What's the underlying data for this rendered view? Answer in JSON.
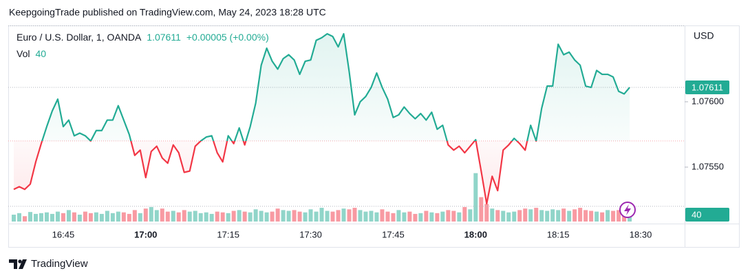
{
  "chart_data": {
    "type": "line",
    "published": "KeepgoingTrade published on TradingView.com, May 24, 2023 18:28 UTC",
    "title": "Euro / U.S. Dollar, 1, OANDA",
    "change": "+0.00005 (+0.00%)",
    "currency": "USD",
    "brand": "TradingView",
    "up_color": "#22ab94",
    "down_color": "#f23645",
    "baseline": 1.0757,
    "ylim": [
      1.075068,
      1.076584
    ],
    "yticks": [
      {
        "value": 1.076,
        "label": "1.07600"
      },
      {
        "value": 1.0755,
        "label": "1.07550"
      }
    ],
    "xlim": [
      "16:35",
      "18:38"
    ],
    "xticks": [
      "16:45",
      "17:00",
      "17:15",
      "17:30",
      "17:45",
      "18:00",
      "18:15",
      "18:30"
    ],
    "x": [
      "16:36",
      "16:37",
      "16:38",
      "16:39",
      "16:40",
      "16:41",
      "16:42",
      "16:43",
      "16:44",
      "16:45",
      "16:46",
      "16:47",
      "16:48",
      "16:49",
      "16:50",
      "16:51",
      "16:52",
      "16:53",
      "16:54",
      "16:55",
      "16:56",
      "16:57",
      "16:58",
      "16:59",
      "17:00",
      "17:01",
      "17:02",
      "17:03",
      "17:04",
      "17:05",
      "17:06",
      "17:07",
      "17:08",
      "17:09",
      "17:10",
      "17:11",
      "17:12",
      "17:13",
      "17:14",
      "17:15",
      "17:16",
      "17:17",
      "17:18",
      "17:19",
      "17:20",
      "17:21",
      "17:22",
      "17:23",
      "17:24",
      "17:25",
      "17:26",
      "17:27",
      "17:28",
      "17:29",
      "17:30",
      "17:31",
      "17:32",
      "17:33",
      "17:34",
      "17:35",
      "17:36",
      "17:37",
      "17:38",
      "17:39",
      "17:40",
      "17:41",
      "17:42",
      "17:43",
      "17:44",
      "17:45",
      "17:46",
      "17:47",
      "17:48",
      "17:49",
      "17:50",
      "17:51",
      "17:52",
      "17:53",
      "17:54",
      "17:55",
      "17:56",
      "17:57",
      "17:58",
      "17:59",
      "18:00",
      "18:01",
      "18:02",
      "18:03",
      "18:04",
      "18:05",
      "18:06",
      "18:07",
      "18:08",
      "18:09",
      "18:10",
      "18:11",
      "18:12",
      "18:13",
      "18:14",
      "18:15",
      "18:16",
      "18:17",
      "18:18",
      "18:19",
      "18:20",
      "18:21",
      "18:22",
      "18:23",
      "18:24",
      "18:25",
      "18:26",
      "18:27",
      "18:28"
    ],
    "series": [
      {
        "name": "EURUSD",
        "values": [
          1.07533,
          1.07535,
          1.07533,
          1.07537,
          1.07554,
          1.07568,
          1.07581,
          1.07593,
          1.07602,
          1.07581,
          1.07586,
          1.07574,
          1.07576,
          1.07574,
          1.0757,
          1.07578,
          1.07578,
          1.07586,
          1.07586,
          1.07597,
          1.07586,
          1.07575,
          1.07559,
          1.07563,
          1.07542,
          1.07562,
          1.07566,
          1.07557,
          1.07553,
          1.07567,
          1.07561,
          1.07546,
          1.07547,
          1.07566,
          1.0757,
          1.07573,
          1.07574,
          1.07561,
          1.07554,
          1.07574,
          1.07568,
          1.0758,
          1.07567,
          1.07581,
          1.07599,
          1.07628,
          1.07641,
          1.07631,
          1.07625,
          1.07633,
          1.07636,
          1.07632,
          1.07621,
          1.07631,
          1.07632,
          1.07647,
          1.07649,
          1.07652,
          1.0765,
          1.07642,
          1.07652,
          1.07623,
          1.0759,
          1.076,
          1.07604,
          1.07611,
          1.07622,
          1.07611,
          1.07602,
          1.07588,
          1.0759,
          1.07596,
          1.07591,
          1.07587,
          1.07591,
          1.07586,
          1.07592,
          1.07579,
          1.07582,
          1.07567,
          1.07563,
          1.07566,
          1.07561,
          1.07566,
          1.07571,
          1.07547,
          1.07522,
          1.07543,
          1.07532,
          1.07563,
          1.07567,
          1.07572,
          1.07568,
          1.07563,
          1.07582,
          1.0757,
          1.07595,
          1.07612,
          1.07612,
          1.07644,
          1.07636,
          1.07638,
          1.07632,
          1.07628,
          1.07612,
          1.07611,
          1.07624,
          1.07621,
          1.07621,
          1.07619,
          1.07608,
          1.07606,
          1.07611
        ]
      }
    ],
    "volume": {
      "name": "Vol",
      "ylim": [
        0,
        130
      ],
      "values": [
        18,
        22,
        14,
        25,
        20,
        22,
        24,
        20,
        26,
        22,
        30,
        24,
        18,
        26,
        22,
        24,
        20,
        28,
        22,
        26,
        24,
        20,
        30,
        22,
        34,
        38,
        30,
        34,
        26,
        28,
        24,
        30,
        26,
        28,
        22,
        24,
        20,
        26,
        24,
        22,
        28,
        30,
        26,
        24,
        32,
        28,
        24,
        26,
        34,
        30,
        28,
        30,
        26,
        24,
        32,
        26,
        36,
        28,
        26,
        30,
        34,
        32,
        36,
        30,
        26,
        28,
        24,
        32,
        26,
        22,
        30,
        24,
        26,
        20,
        22,
        28,
        24,
        22,
        26,
        30,
        28,
        24,
        38,
        32,
        127,
        64,
        46,
        34,
        30,
        28,
        24,
        26,
        30,
        34,
        32,
        36,
        30,
        28,
        32,
        30,
        34,
        28,
        32,
        36,
        30,
        28,
        26,
        24,
        30,
        28,
        30,
        26,
        40
      ]
    }
  }
}
